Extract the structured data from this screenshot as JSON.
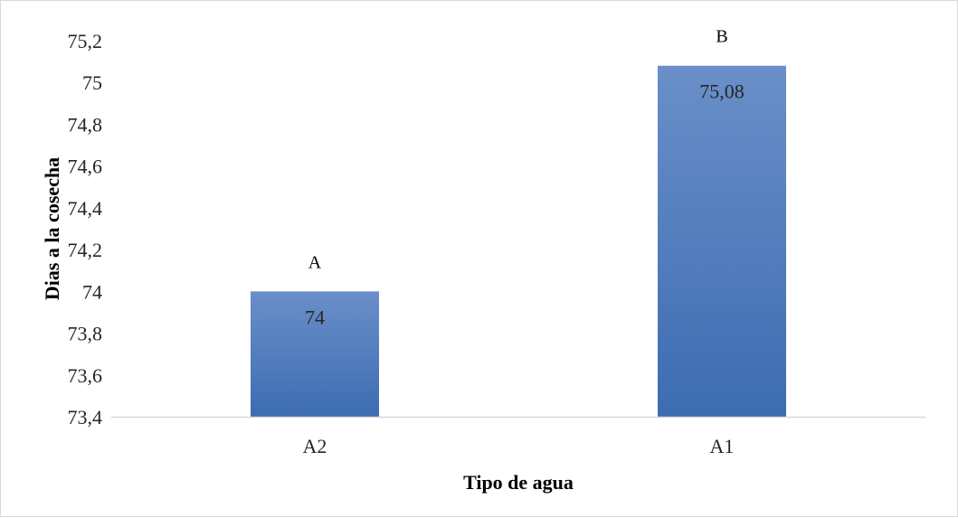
{
  "chart_data": {
    "type": "bar",
    "title": "",
    "xlabel": "Tipo de agua",
    "ylabel": "Dias a la cosecha",
    "categories": [
      "A2",
      "A1"
    ],
    "values": [
      74,
      75.08
    ],
    "value_labels": [
      "74",
      "75,08"
    ],
    "group_letters": [
      "A",
      "B"
    ],
    "ylim": [
      73.4,
      75.2
    ],
    "yticks": [
      73.4,
      73.6,
      73.8,
      74,
      74.2,
      74.4,
      74.6,
      74.8,
      75,
      75.2
    ],
    "ytick_labels": [
      "73,4",
      "73,6",
      "73,8",
      "74",
      "74,2",
      "74,4",
      "74,6",
      "74,8",
      "75",
      "75,2"
    ],
    "grid": false,
    "legend": "none",
    "bar_color_top": "#6a8fc9",
    "bar_color_bottom": "#3d6cb2"
  }
}
